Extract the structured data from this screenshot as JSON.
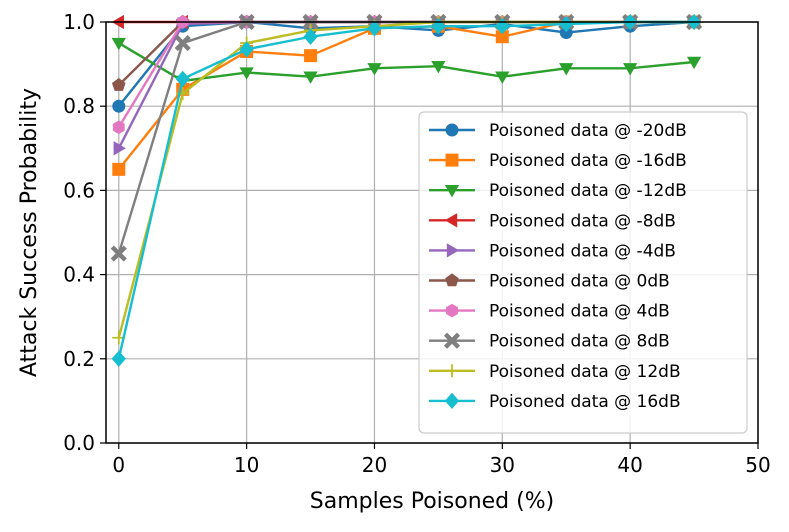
{
  "chart_data": {
    "type": "line",
    "title": "",
    "xlabel": "Samples Poisoned (%)",
    "ylabel": "Attack Success Probability",
    "xlim": [
      -1,
      50
    ],
    "ylim": [
      0.0,
      1.0
    ],
    "xticks": [
      0,
      10,
      20,
      30,
      40,
      50
    ],
    "yticks": [
      0.0,
      0.2,
      0.4,
      0.6,
      0.8,
      1.0
    ],
    "xtick_labels": [
      "0",
      "10",
      "20",
      "30",
      "40",
      "50"
    ],
    "ytick_labels": [
      "0.0",
      "0.2",
      "0.4",
      "0.6",
      "0.8",
      "1.0"
    ],
    "grid": true,
    "legend_position": "center-right",
    "x": [
      0,
      5,
      10,
      15,
      20,
      25,
      30,
      35,
      40,
      45
    ],
    "series": [
      {
        "name": "Poisoned data @ -20dB",
        "color": "#1f77b4",
        "marker": "circle",
        "values": [
          0.8,
          0.99,
          1.0,
          0.985,
          0.99,
          0.98,
          0.995,
          0.975,
          0.99,
          1.0
        ]
      },
      {
        "name": "Poisoned data @ -16dB",
        "color": "#ff7f0e",
        "marker": "square",
        "values": [
          0.65,
          0.84,
          0.93,
          0.92,
          0.985,
          0.99,
          0.965,
          1.0,
          1.0,
          1.0
        ]
      },
      {
        "name": "Poisoned data @ -12dB",
        "color": "#2ca02c",
        "marker": "triangle-down",
        "values": [
          0.95,
          0.86,
          0.88,
          0.87,
          0.89,
          0.895,
          0.87,
          0.89,
          0.89,
          0.905
        ]
      },
      {
        "name": "Poisoned data @ -8dB",
        "color": "#d62728",
        "marker": "triangle-left",
        "values": [
          1.0,
          1.0,
          1.0,
          1.0,
          1.0,
          1.0,
          1.0,
          1.0,
          1.0,
          1.0
        ]
      },
      {
        "name": "Poisoned data @ -4dB",
        "color": "#9467bd",
        "marker": "triangle-right",
        "values": [
          0.7,
          0.995,
          1.0,
          1.0,
          1.0,
          1.0,
          1.0,
          1.0,
          1.0,
          1.0
        ]
      },
      {
        "name": "Poisoned data @ 0dB",
        "color": "#8c564b",
        "marker": "pentagon",
        "values": [
          0.85,
          1.0,
          1.0,
          1.0,
          1.0,
          1.0,
          1.0,
          1.0,
          1.0,
          1.0
        ]
      },
      {
        "name": "Poisoned data @ 4dB",
        "color": "#e377c2",
        "marker": "hexagon",
        "values": [
          0.75,
          1.0,
          1.0,
          1.0,
          1.0,
          1.0,
          1.0,
          1.0,
          1.0,
          1.0
        ]
      },
      {
        "name": "Poisoned data @ 8dB",
        "color": "#7f7f7f",
        "marker": "x",
        "values": [
          0.45,
          0.95,
          1.0,
          1.0,
          1.0,
          1.0,
          1.0,
          1.0,
          1.0,
          1.0
        ]
      },
      {
        "name": "Poisoned data @ 12dB",
        "color": "#bcbd22",
        "marker": "plus",
        "values": [
          0.25,
          0.83,
          0.95,
          0.98,
          0.99,
          1.0,
          1.0,
          1.0,
          1.0,
          1.0
        ]
      },
      {
        "name": "Poisoned data @ 16dB",
        "color": "#17becf",
        "marker": "diamond",
        "values": [
          0.2,
          0.865,
          0.935,
          0.965,
          0.985,
          0.99,
          0.99,
          0.995,
          1.0,
          1.0
        ]
      }
    ]
  }
}
